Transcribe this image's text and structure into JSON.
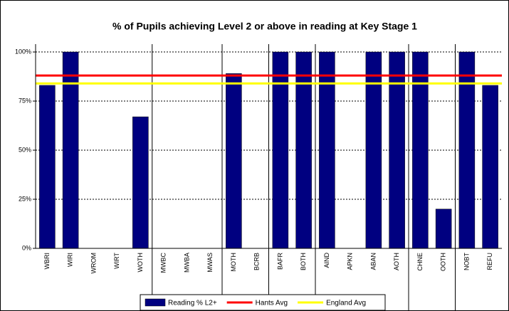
{
  "chart_data": {
    "type": "bar",
    "title": "% of Pupils achieving Level 2 or above in reading at Key Stage 1",
    "categories": [
      "WBRI",
      "WIRI",
      "WROM",
      "WIRT",
      "WOTH",
      "MWBC",
      "MWBA",
      "MWAS",
      "MOTH",
      "BCRB",
      "BAFR",
      "BOTH",
      "AIND",
      "APKN",
      "ABAN",
      "AOTH",
      "CHNE",
      "OOTH",
      "NOBT",
      "REFU"
    ],
    "series": [
      {
        "name": "Reading % L2+",
        "color": "#000080",
        "values": [
          83,
          100,
          0,
          0,
          67,
          0,
          0,
          0,
          89,
          0,
          100,
          100,
          100,
          0,
          100,
          100,
          100,
          20,
          100,
          83
        ]
      }
    ],
    "reference_lines": [
      {
        "name": "Hants Avg",
        "color": "#ff0000",
        "value": 88
      },
      {
        "name": "England Avg",
        "color": "#ffff00",
        "value": 84
      }
    ],
    "ylim": [
      0,
      104
    ],
    "yticks": [
      {
        "value": 0,
        "label": "0%"
      },
      {
        "value": 25,
        "label": "25%"
      },
      {
        "value": 50,
        "label": "50%"
      },
      {
        "value": 75,
        "label": "75%"
      },
      {
        "value": 100,
        "label": "100%"
      }
    ],
    "grid": true,
    "legend": "bottom"
  }
}
